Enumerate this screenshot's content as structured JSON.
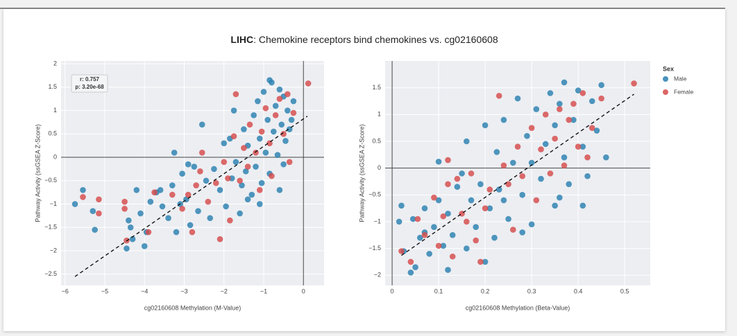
{
  "title": {
    "bold": "LIHC",
    "rest": ": Chemokine receptors bind chemokines vs. cg02160608"
  },
  "chart_data": [
    {
      "type": "scatter",
      "xlabel": "cg02160608 Methylation (M-Value)",
      "ylabel": "Pathway Activity (ssGSEA Z-Score)",
      "xlim": [
        -6.1,
        0.52
      ],
      "ylim": [
        -2.74,
        2.06
      ],
      "xticks": [
        {
          "value": -6,
          "label": "−6"
        },
        {
          "value": -5,
          "label": "−5"
        },
        {
          "value": -4,
          "label": "−4"
        },
        {
          "value": -3,
          "label": "−3"
        },
        {
          "value": -2,
          "label": "−2"
        },
        {
          "value": -1,
          "label": "−1"
        },
        0
      ],
      "yticks": [
        2,
        1.5,
        1,
        0.5,
        0,
        {
          "value": -0.5,
          "label": "−0.5"
        },
        {
          "value": -1,
          "label": "−1"
        },
        {
          "value": -1.5,
          "label": "−1.5"
        },
        {
          "value": -2,
          "label": "−2"
        },
        {
          "value": -2.5,
          "label": "−2.5"
        }
      ],
      "grid": true,
      "zeroline": true,
      "annotation": [
        "r: 0.757",
        "p: 3.20e-68"
      ],
      "trendline": {
        "x": [
          -5.75,
          0.1
        ],
        "y": [
          -2.55,
          0.88
        ]
      },
      "series": [
        {
          "color": "#2a80b0",
          "x": [
            -5.75,
            -5.55,
            -5.3,
            -5.25,
            -4.4,
            -4.35,
            -4.3,
            -4.45,
            -4.0,
            -3.95,
            -4.1,
            -3.85,
            -3.7,
            -3.55,
            -3.4,
            -3.3,
            -3.2,
            -3.1,
            -3.05,
            -2.95,
            -2.85,
            -2.75,
            -2.65,
            -2.55,
            -2.45,
            -2.35,
            -2.25,
            -2.1,
            -2.0,
            -1.95,
            -1.85,
            -1.8,
            -1.75,
            -1.7,
            -1.6,
            -1.55,
            -1.5,
            -1.45,
            -1.4,
            -1.3,
            -1.25,
            -1.2,
            -1.15,
            -1.1,
            -1.05,
            -1.0,
            -0.95,
            -0.9,
            -0.85,
            -0.8,
            -0.75,
            -0.7,
            -0.65,
            -0.6,
            -0.55,
            -0.5,
            -0.45,
            -0.4,
            -0.35,
            -0.25,
            -0.6,
            -1.1,
            -1.4,
            -2.9,
            -3.25,
            -4.2,
            -3.6,
            -0.3,
            -0.85,
            -0.5
          ],
          "y": [
            -1.0,
            -0.7,
            -1.15,
            -1.55,
            -1.35,
            -1.5,
            -1.75,
            -1.95,
            -1.9,
            -1.6,
            -1.2,
            -0.95,
            -0.75,
            -1.05,
            -1.3,
            -0.6,
            -1.6,
            -1.0,
            -0.35,
            -0.9,
            -1.45,
            -0.2,
            -1.15,
            0.7,
            -0.5,
            -1.3,
            -0.25,
            -0.7,
            0.3,
            -1.05,
            0.4,
            -0.45,
            1.0,
            -0.1,
            -1.2,
            -0.6,
            0.6,
            -0.3,
            0.25,
            -0.8,
            0.9,
            -0.2,
            1.2,
            0.4,
            -0.55,
            1.4,
            0.1,
            0.8,
            -0.35,
            1.6,
            0.55,
            1.1,
            0.05,
            1.45,
            0.7,
            1.3,
            0.35,
            1.0,
            0.6,
            1.2,
            -0.7,
            -1.0,
            -0.9,
            -0.15,
            0.1,
            -0.7,
            -0.7,
            0.8,
            1.65,
            -0.15
          ]
        },
        {
          "color": "#d64a4a",
          "x": [
            -5.55,
            -5.15,
            -5.15,
            -4.5,
            -4.5,
            -4.45,
            -3.9,
            -3.75,
            -3.3,
            -3.05,
            -2.8,
            -2.7,
            -2.6,
            -2.55,
            -2.4,
            -2.2,
            -2.1,
            -2.0,
            -1.85,
            -1.75,
            -1.7,
            -1.6,
            -1.5,
            -1.4,
            -1.35,
            -1.2,
            -1.1,
            -1.05,
            -0.95,
            -0.85,
            -0.8,
            -0.7,
            -0.6,
            -0.5,
            -0.4,
            -0.35,
            -0.25,
            0.12,
            -2.9,
            -1.9
          ],
          "y": [
            -0.85,
            -0.9,
            -1.2,
            -0.95,
            -1.1,
            -1.78,
            -1.6,
            -0.75,
            -0.8,
            -1.1,
            -1.6,
            -0.6,
            -0.3,
            0.1,
            -0.95,
            -0.55,
            -1.75,
            -0.1,
            -1.35,
            0.45,
            1.35,
            -0.5,
            0.2,
            -0.2,
            0.7,
            0.1,
            -0.7,
            0.55,
            1.05,
            0.3,
            -0.4,
            0.9,
            1.25,
            0.5,
            1.35,
            -0.1,
            0.95,
            1.58,
            -0.8,
            -0.45
          ]
        }
      ]
    },
    {
      "type": "scatter",
      "xlabel": "cg02160608 Methylation (Beta-Value)",
      "ylabel": "Pathway Activity (ssGSEA Z-Score)",
      "xlim": [
        -0.015,
        0.555
      ],
      "ylim": [
        -2.19,
        2.0
      ],
      "xticks": [
        0,
        0.1,
        0.2,
        0.3,
        0.4,
        0.5
      ],
      "yticks": [
        1.5,
        1,
        0.5,
        0,
        {
          "value": -0.5,
          "label": "−0.5"
        },
        {
          "value": -1,
          "label": "−1"
        },
        {
          "value": -1.5,
          "label": "−1.5"
        },
        {
          "value": -2,
          "label": "−2"
        }
      ],
      "grid": true,
      "zeroline": true,
      "trendline": {
        "x": [
          0.02,
          0.52
        ],
        "y": [
          -1.63,
          1.38
        ]
      },
      "legend": {
        "title": "Sex",
        "position": "right"
      },
      "series": [
        {
          "name": "Male",
          "color": "#2a80b0",
          "x": [
            0.015,
            0.02,
            0.025,
            0.04,
            0.05,
            0.045,
            0.06,
            0.07,
            0.08,
            0.09,
            0.1,
            0.1,
            0.11,
            0.12,
            0.13,
            0.14,
            0.15,
            0.16,
            0.17,
            0.16,
            0.18,
            0.19,
            0.2,
            0.21,
            0.22,
            0.225,
            0.23,
            0.24,
            0.25,
            0.26,
            0.27,
            0.28,
            0.29,
            0.3,
            0.31,
            0.32,
            0.33,
            0.34,
            0.35,
            0.35,
            0.36,
            0.37,
            0.37,
            0.38,
            0.39,
            0.4,
            0.41,
            0.42,
            0.43,
            0.44,
            0.45,
            0.46,
            0.41,
            0.36,
            0.28,
            0.2,
            0.12,
            0.07,
            0.24,
            0.3
          ],
          "y": [
            -1.0,
            -0.7,
            -1.55,
            -1.95,
            -1.85,
            -0.95,
            -1.3,
            -0.75,
            -1.6,
            -1.1,
            0.12,
            -0.6,
            -1.45,
            -0.85,
            -1.25,
            -0.35,
            -0.1,
            -1.5,
            -0.6,
            0.5,
            -1.1,
            -0.3,
            0.8,
            -0.75,
            -1.3,
            0.3,
            -0.4,
            0.9,
            -0.95,
            0.1,
            1.3,
            -0.5,
            0.6,
            -1.05,
            1.1,
            -0.2,
            0.45,
            1.4,
            -0.7,
            0.8,
            1.2,
            0.2,
            1.6,
            -0.3,
            0.9,
            1.45,
            0.4,
            -0.15,
            1.25,
            0.7,
            1.55,
            0.2,
            -0.7,
            -0.55,
            -1.2,
            -1.75,
            -1.9,
            -1.2,
            -0.6,
            0.1
          ]
        },
        {
          "name": "Female",
          "color": "#d64a4a",
          "x": [
            0.02,
            0.04,
            0.055,
            0.07,
            0.09,
            0.1,
            0.11,
            0.12,
            0.13,
            0.14,
            0.15,
            0.16,
            0.17,
            0.18,
            0.19,
            0.2,
            0.21,
            0.23,
            0.24,
            0.25,
            0.26,
            0.27,
            0.28,
            0.3,
            0.31,
            0.32,
            0.33,
            0.34,
            0.35,
            0.36,
            0.37,
            0.38,
            0.39,
            0.4,
            0.41,
            0.42,
            0.43,
            0.45,
            0.52,
            0.12
          ],
          "y": [
            -1.55,
            -1.75,
            -0.95,
            -1.25,
            -0.55,
            -1.45,
            -0.9,
            -0.3,
            -1.65,
            -0.2,
            -0.85,
            -1.0,
            -0.1,
            -1.35,
            -1.75,
            -0.75,
            -0.4,
            1.35,
            0.05,
            -0.3,
            -1.15,
            0.4,
            -0.15,
            0.75,
            -0.6,
            0.35,
            1.0,
            -0.1,
            0.55,
            1.1,
            0.05,
            0.9,
            1.2,
            0.4,
            1.4,
            0.2,
            0.75,
            1.3,
            1.58,
            0.15
          ]
        }
      ]
    }
  ]
}
